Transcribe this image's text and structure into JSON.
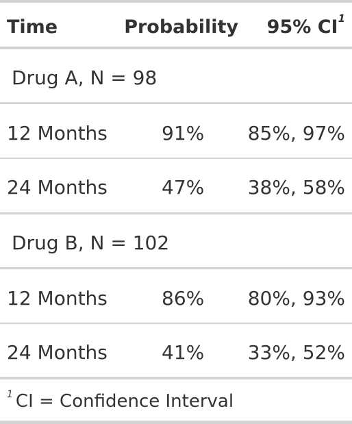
{
  "header": {
    "col_time": "Time",
    "col_probability": "Probability",
    "col_ci": "95% CI",
    "col_ci_footnote_mark": "1"
  },
  "groups": [
    {
      "label": "Drug A, N = 98",
      "rows": [
        {
          "time": "12 Months",
          "probability": "91%",
          "ci": "85%, 97%"
        },
        {
          "time": "24 Months",
          "probability": "47%",
          "ci": "38%, 58%"
        }
      ]
    },
    {
      "label": "Drug B, N = 102",
      "rows": [
        {
          "time": "12 Months",
          "probability": "86%",
          "ci": "80%, 93%"
        },
        {
          "time": "24 Months",
          "probability": "41%",
          "ci": "33%, 52%"
        }
      ]
    }
  ],
  "footnote": {
    "mark": "1",
    "text": "CI = Confidence Interval"
  }
}
